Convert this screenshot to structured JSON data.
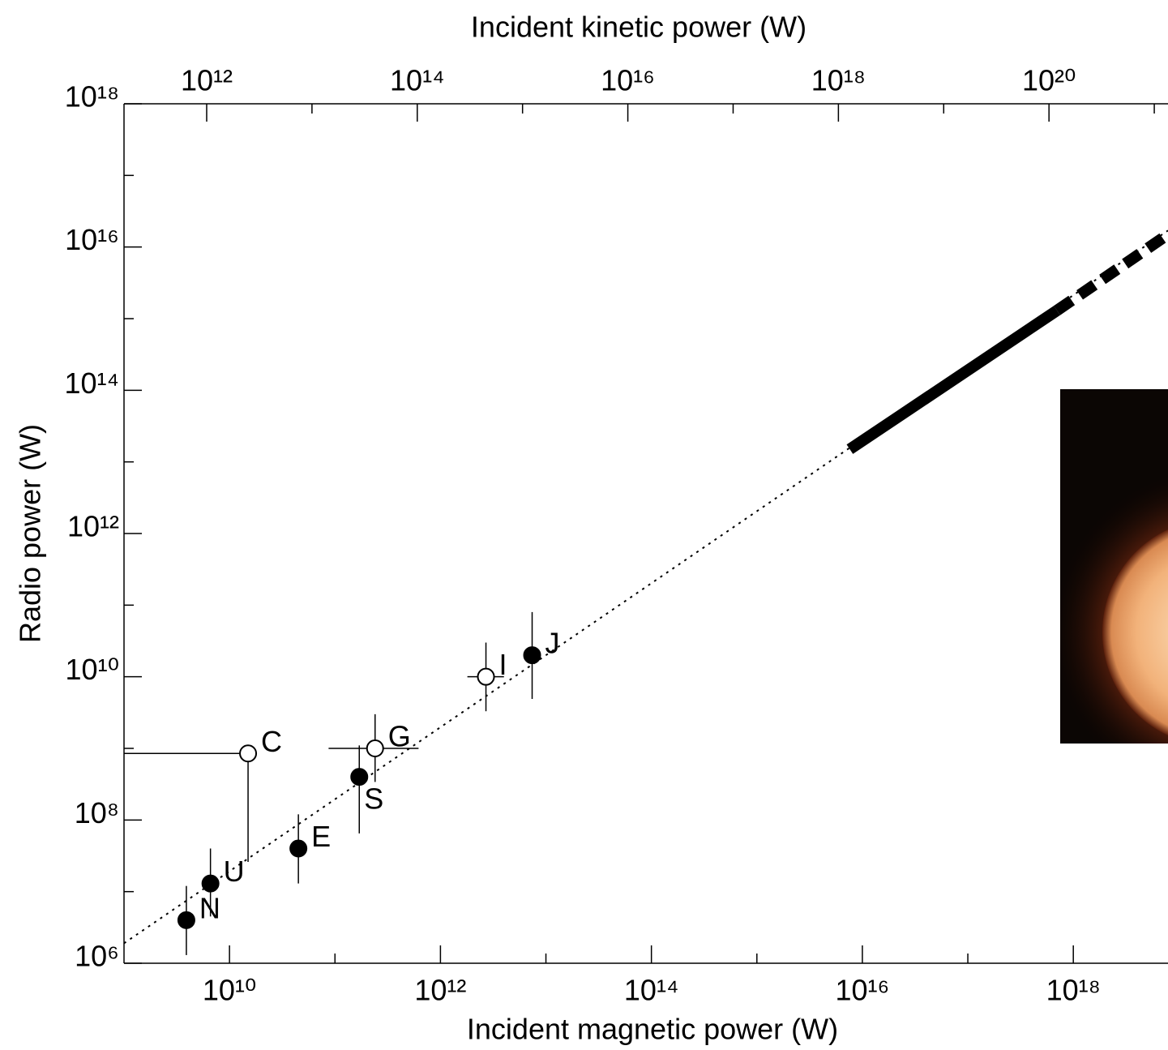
{
  "chart_data": {
    "type": "scatter",
    "x_label": "Incident magnetic power (W)",
    "x2_label": "Incident kinetic power (W)",
    "y_label": "Radio power (W)",
    "log_x": true,
    "log_y": true,
    "xlim": [
      1000000000.0,
      7.9e+18
    ],
    "xticks": [
      {
        "value": 10000000000.0,
        "label": "10¹⁰"
      },
      {
        "value": 1000000000000.0,
        "label": "10¹²"
      },
      {
        "value": 100000000000000.0,
        "label": "10¹⁴"
      },
      {
        "value": 1e+16,
        "label": "10¹⁶"
      },
      {
        "value": 1e+18,
        "label": "10¹⁸"
      }
    ],
    "xminor": [
      100000000000.0,
      10000000000000.0,
      1000000000000000.0,
      1e+17
    ],
    "x2lim": [
      164000000000.0,
      1.35e+21
    ],
    "x2ticks": [
      {
        "value": 1000000000000.0,
        "label": "10¹²"
      },
      {
        "value": 100000000000000.0,
        "label": "10¹⁴"
      },
      {
        "value": 1e+16,
        "label": "10¹⁶"
      },
      {
        "value": 1e+18,
        "label": "10¹⁸"
      },
      {
        "value": 1e+20,
        "label": "10²⁰"
      }
    ],
    "x2minor": [
      10000000000000.0,
      1000000000000000.0,
      1e+17,
      1e+19,
      1e+21
    ],
    "ylim": [
      1000000.0,
      1e+18
    ],
    "yticks": [
      {
        "value": 1000000.0,
        "label": "10⁶"
      },
      {
        "value": 100000000.0,
        "label": "10⁸"
      },
      {
        "value": 10000000000.0,
        "label": "10¹⁰"
      },
      {
        "value": 1000000000000.0,
        "label": "10¹²"
      },
      {
        "value": 100000000000000.0,
        "label": "10¹⁴"
      },
      {
        "value": 1e+16,
        "label": "10¹⁶"
      },
      {
        "value": 1e+18,
        "label": "10¹⁸"
      }
    ],
    "yminor": [
      10000000.0,
      1000000000.0,
      100000000000.0,
      10000000000000.0,
      1000000000000000.0,
      1e+17
    ],
    "color": "#000000",
    "points": [
      {
        "label": "N",
        "filled": true,
        "x": 3900000000.0,
        "y": 4000000.0,
        "y_lower": 1300000.0,
        "y_upper": 12000000.0
      },
      {
        "label": "U",
        "filled": true,
        "x": 6600000000.0,
        "y": 13000000.0,
        "y_lower": 4500000.0,
        "y_upper": 40000000.0
      },
      {
        "label": "E",
        "filled": true,
        "x": 45000000000.0,
        "y": 40000000.0,
        "y_lower": 13000000.0,
        "y_upper": 120000000.0
      },
      {
        "label": "S",
        "filled": true,
        "x": 170000000000.0,
        "y": 400000000.0,
        "y_lower": 65000000.0,
        "y_upper": 1100000000.0
      },
      {
        "label": "C",
        "filled": false,
        "x": 15000000000.0,
        "y": 850000000.0,
        "y_lower": 26000000.0,
        "x_lower": 1000000000.0
      },
      {
        "label": "G",
        "filled": false,
        "x": 240000000000.0,
        "y": 1000000000.0,
        "y_lower": 340000000.0,
        "y_upper": 3000000000.0,
        "x_lower": 87000000000.0,
        "x_upper": 620000000000.0
      },
      {
        "label": "I",
        "filled": false,
        "x": 2700000000000.0,
        "y": 10000000000.0,
        "y_lower": 3300000000.0,
        "y_upper": 30000000000.0,
        "x_lower": 1800000000000.0,
        "x_upper": 4000000000000.0
      },
      {
        "label": "J",
        "filled": true,
        "x": 7400000000000.0,
        "y": 20000000000.0,
        "y_lower": 4900000000.0,
        "y_upper": 80000000000.0
      }
    ],
    "lines": [
      {
        "style": "dotted",
        "x": [
          1000000000.0,
          7.9e+18
        ],
        "values": [
          1900000.0,
          1.7e+16
        ]
      },
      {
        "style": "solid-thick",
        "x": [
          7600000000000000.0,
          7e+17
        ],
        "values": [
          15000000000000.0,
          1300000000000000.0
        ]
      },
      {
        "style": "dashed-thick",
        "x": [
          7e+17,
          7.9e+18
        ],
        "values": [
          1300000000000000.0,
          1.5e+16
        ]
      }
    ]
  }
}
